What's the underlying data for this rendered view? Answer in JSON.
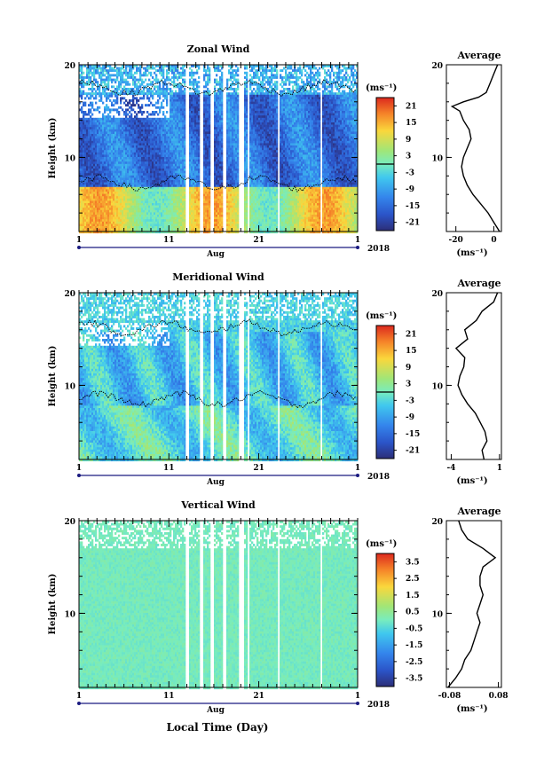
{
  "figure": {
    "xlabel": "Local Time (Day)",
    "month": "Aug",
    "year": "2018"
  },
  "chart_data": [
    {
      "type": "heatmap",
      "title": "Zonal Wind",
      "ylabel": "Height (km)",
      "unit": "(ms⁻¹)",
      "x_ticks": [
        "1",
        "11",
        "21",
        "1"
      ],
      "y_ticks": [
        "20",
        "10"
      ],
      "xlim": [
        1,
        32
      ],
      "ylim": [
        2,
        20
      ],
      "colorbar_ticks": [
        "21",
        "15",
        "9",
        "3",
        "-3",
        "-9",
        "-15",
        "-21"
      ],
      "colorbar_range": [
        -24,
        24
      ],
      "zero_contour": true,
      "average_profile": {
        "title": "Average",
        "unit": "(ms⁻¹)",
        "x_ticks": [
          "-20",
          "0"
        ],
        "y_ticks": [
          "20",
          "10"
        ],
        "xlim": [
          -25,
          4
        ],
        "height": [
          2,
          3,
          4,
          5,
          6,
          7,
          8,
          9,
          10,
          11,
          12,
          13,
          14,
          15,
          15.5,
          16,
          16.5,
          17,
          18,
          19,
          20
        ],
        "value": [
          3,
          0,
          -3,
          -7,
          -11,
          -14,
          -16,
          -17,
          -16,
          -14,
          -12,
          -13,
          -16,
          -18,
          -22,
          -16,
          -8,
          -4,
          -2,
          0,
          2
        ]
      }
    },
    {
      "type": "heatmap",
      "title": "Meridional Wind",
      "ylabel": "Height (km)",
      "unit": "(ms⁻¹)",
      "x_ticks": [
        "1",
        "11",
        "21",
        "1"
      ],
      "y_ticks": [
        "20",
        "10"
      ],
      "xlim": [
        1,
        32
      ],
      "ylim": [
        2,
        20
      ],
      "colorbar_ticks": [
        "21",
        "15",
        "9",
        "3",
        "-3",
        "-9",
        "-15",
        "-21"
      ],
      "colorbar_range": [
        -24,
        24
      ],
      "zero_contour": true,
      "average_profile": {
        "title": "Average",
        "unit": "(ms⁻¹)",
        "x_ticks": [
          "-4",
          "1"
        ],
        "y_ticks": [
          "20",
          "10"
        ],
        "xlim": [
          -4.5,
          1.2
        ],
        "height": [
          2,
          3,
          4,
          5,
          6,
          7,
          8,
          9,
          10,
          11,
          12,
          13,
          14,
          15,
          16,
          17,
          18,
          19,
          20
        ],
        "value": [
          -0.6,
          -0.8,
          -0.3,
          -0.5,
          -1.0,
          -1.5,
          -2.3,
          -2.9,
          -3.3,
          -3.1,
          -2.7,
          -2.6,
          -3.5,
          -2.3,
          -2.6,
          -1.4,
          -0.8,
          0.4,
          0.8
        ]
      }
    },
    {
      "type": "heatmap",
      "title": "Vertical Wind",
      "ylabel": "Height (km)",
      "unit": "(ms⁻¹)",
      "x_ticks": [
        "1",
        "11",
        "21",
        "1"
      ],
      "y_ticks": [
        "20",
        "10"
      ],
      "xlim": [
        1,
        32
      ],
      "ylim": [
        2,
        20
      ],
      "colorbar_ticks": [
        "3.5",
        "2.5",
        "1.5",
        "0.5",
        "-0.5",
        "-1.5",
        "-2.5",
        "-3.5"
      ],
      "colorbar_range": [
        -4,
        4
      ],
      "zero_contour": false,
      "average_profile": {
        "title": "Average",
        "unit": "(ms⁻¹)",
        "x_ticks": [
          "-0.08",
          "0.08"
        ],
        "y_ticks": [
          "20",
          "10"
        ],
        "xlim": [
          -0.09,
          0.09
        ],
        "height": [
          2,
          3,
          4,
          5,
          6,
          7,
          8,
          9,
          10,
          11,
          12,
          13,
          14,
          15,
          16,
          17,
          18,
          19,
          20
        ],
        "value": [
          -0.085,
          -0.06,
          -0.04,
          -0.03,
          -0.01,
          0.0,
          0.01,
          0.02,
          0.01,
          0.02,
          0.03,
          0.02,
          0.02,
          0.03,
          0.07,
          0.03,
          -0.02,
          -0.04,
          -0.05
        ]
      }
    }
  ]
}
